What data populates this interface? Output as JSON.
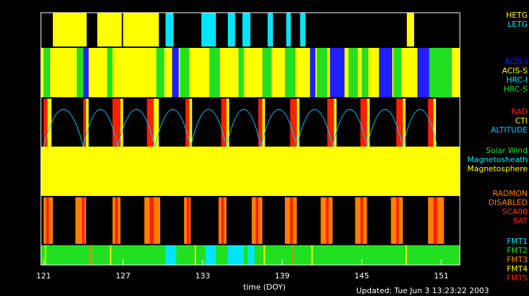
{
  "chart_data": {
    "type": "timeline",
    "xlabel": "time (DOY)",
    "footer": "Updated: Tue Jun  3 13:23:22 2003",
    "xlim": [
      120.8,
      152.4
    ],
    "xticks": [
      121,
      127,
      133,
      139,
      145,
      151
    ],
    "panels": [
      {
        "background": "#000000",
        "series": [
          {
            "name": "HETG",
            "color": "#ffff00",
            "intervals": [
              [
                121.7,
                124.25
              ],
              [
                125.05,
                126.9
              ],
              [
                127.0,
                129.7
              ],
              [
                148.4,
                148.95
              ]
            ]
          },
          {
            "name": "LETG",
            "color": "#00e5ff",
            "intervals": [
              [
                130.2,
                130.8
              ],
              [
                132.9,
                134.0
              ],
              [
                134.9,
                135.45
              ],
              [
                136.0,
                136.6
              ],
              [
                137.9,
                138.3
              ],
              [
                139.3,
                139.65
              ],
              [
                140.35,
                140.75
              ]
            ]
          }
        ]
      },
      {
        "background": "#000000",
        "series": [
          {
            "name": "ACIS-I",
            "color": "#2020ff",
            "intervals": [
              [
                124.0,
                124.4
              ],
              [
                130.7,
                131.2
              ],
              [
                141.1,
                141.5
              ],
              [
                142.6,
                143.7
              ],
              [
                146.3,
                147.3
              ],
              [
                149.2,
                150.1
              ]
            ]
          },
          {
            "name": "ACIS-S",
            "color": "#ffff00",
            "intervals": [
              [
                120.8,
                124.0
              ],
              [
                124.4,
                130.7
              ],
              [
                131.2,
                141.1
              ],
              [
                141.5,
                142.6
              ],
              [
                143.7,
                146.3
              ],
              [
                147.3,
                149.2
              ],
              [
                150.1,
                152.4
              ]
            ]
          },
          {
            "name": "HRC-I",
            "color": "#00e5ff",
            "intervals": []
          },
          {
            "name": "HRC-S",
            "color": "#20e020",
            "intervals": [
              [
                121.0,
                121.5
              ],
              [
                123.5,
                124.0
              ],
              [
                125.8,
                126.2
              ],
              [
                129.5,
                130.1
              ],
              [
                131.3,
                132.0
              ],
              [
                133.5,
                134.3
              ],
              [
                135.7,
                136.1
              ],
              [
                137.5,
                138.2
              ],
              [
                139.2,
                140.0
              ],
              [
                141.6,
                142.4
              ],
              [
                144.0,
                144.7
              ],
              [
                145.0,
                145.5
              ],
              [
                147.4,
                148.0
              ],
              [
                150.1,
                151.8
              ]
            ]
          }
        ]
      },
      {
        "background": "#000000",
        "series": [
          {
            "name": "RAD",
            "color": "#ff2000",
            "intervals": [
              [
                121.0,
                121.4
              ],
              [
                124.0,
                124.2
              ],
              [
                126.2,
                126.8
              ],
              [
                128.8,
                129.3
              ],
              [
                131.7,
                132.0
              ],
              [
                134.4,
                134.8
              ],
              [
                137.2,
                137.5
              ],
              [
                139.6,
                140.1
              ],
              [
                142.4,
                142.9
              ],
              [
                144.9,
                145.4
              ],
              [
                147.6,
                148.1
              ],
              [
                150.0,
                150.4
              ]
            ]
          },
          {
            "name": "CTI",
            "color": "#ffff00",
            "intervals": [
              [
                121.3,
                121.6
              ],
              [
                124.2,
                124.4
              ],
              [
                126.8,
                127.0
              ],
              [
                129.3,
                129.7
              ],
              [
                132.0,
                132.2
              ],
              [
                134.8,
                135.0
              ],
              [
                137.5,
                137.7
              ],
              [
                140.1,
                140.3
              ],
              [
                142.9,
                143.1
              ],
              [
                145.4,
                145.6
              ],
              [
                148.1,
                148.3
              ],
              [
                150.4,
                150.6
              ]
            ]
          },
          {
            "name": "ALTITUDE",
            "color": "#00c8ff",
            "perigees": [
              121.0,
              124.0,
              126.6,
              129.4,
              132.1,
              134.8,
              137.4,
              140.1,
              142.8,
              145.4,
              148.1,
              150.7
            ]
          }
        ]
      },
      {
        "background": "#ffff00",
        "series": [
          {
            "name": "Solar Wind",
            "color": "#20e020",
            "intervals": []
          },
          {
            "name": "Magnetosheath",
            "color": "#00e5ff",
            "intervals": []
          },
          {
            "name": "Magnetosphere",
            "color": "#ffff00",
            "intervals": [
              [
                120.8,
                152.4
              ]
            ]
          }
        ]
      },
      {
        "background": "#000000",
        "series": [
          {
            "name": "RADMON",
            "color": "#ff8000",
            "intervals": []
          },
          {
            "name": "DISABLED",
            "color": "#ff8000",
            "intervals": [
              [
                121.0,
                121.7
              ],
              [
                123.4,
                124.2
              ],
              [
                126.2,
                126.8
              ],
              [
                128.6,
                129.8
              ],
              [
                131.6,
                132.1
              ],
              [
                134.2,
                134.8
              ],
              [
                136.7,
                137.5
              ],
              [
                139.2,
                140.1
              ],
              [
                141.9,
                142.8
              ],
              [
                144.5,
                145.4
              ],
              [
                147.2,
                148.1
              ],
              [
                150.0,
                151.2
              ]
            ]
          },
          {
            "name": "SCA00",
            "color": "#ff4000",
            "intervals": []
          },
          {
            "name": "SAT",
            "color": "#ff2000",
            "intervals": [
              [
                121.2,
                121.4
              ],
              [
                123.9,
                124.1
              ],
              [
                126.4,
                126.6
              ],
              [
                129.0,
                129.3
              ],
              [
                131.8,
                132.0
              ],
              [
                134.4,
                134.6
              ],
              [
                137.0,
                137.2
              ],
              [
                139.6,
                139.8
              ],
              [
                142.3,
                142.5
              ],
              [
                144.9,
                145.1
              ],
              [
                147.6,
                147.8
              ],
              [
                150.4,
                150.7
              ]
            ]
          }
        ]
      },
      {
        "background": "#20e020",
        "series": [
          {
            "name": "FMT1",
            "color": "#00e5ff",
            "intervals": [
              [
                130.2,
                131.0
              ],
              [
                133.2,
                134.0
              ],
              [
                134.9,
                136.1
              ],
              [
                136.4,
                136.9
              ]
            ]
          },
          {
            "name": "FMT2",
            "color": "#20e020",
            "intervals": []
          },
          {
            "name": "FMT3",
            "color": "#ff8000",
            "intervals": [
              [
                124.5,
                124.6
              ],
              [
                139.7,
                139.8
              ]
            ]
          },
          {
            "name": "FMT4",
            "color": "#ffff00",
            "intervals": [
              [
                121.1,
                121.2
              ],
              [
                126.0,
                126.1
              ],
              [
                132.4,
                132.5
              ],
              [
                137.6,
                137.7
              ],
              [
                141.2,
                141.3
              ],
              [
                148.3,
                148.4
              ]
            ]
          },
          {
            "name": "FMT5",
            "color": "#ff2000",
            "intervals": []
          }
        ]
      }
    ]
  }
}
